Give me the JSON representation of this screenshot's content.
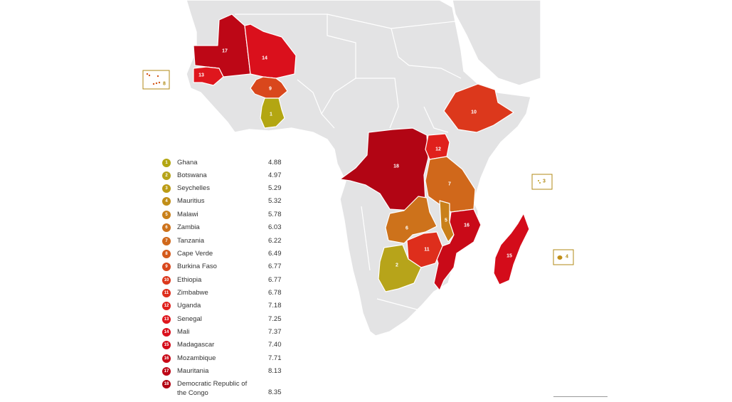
{
  "map": {
    "region": "Africa",
    "inset_labels": [
      "8",
      "3",
      "4"
    ]
  },
  "legend": {
    "items": [
      {
        "rank": "1",
        "country": "Ghana",
        "value": "4.88",
        "color": "#b3a612"
      },
      {
        "rank": "2",
        "country": "Botswana",
        "value": "4.97",
        "color": "#b7a41a"
      },
      {
        "rank": "3",
        "country": "Seychelles",
        "value": "5.29",
        "color": "#bc9c16"
      },
      {
        "rank": "4",
        "country": "Mauritius",
        "value": "5.32",
        "color": "#c18e18"
      },
      {
        "rank": "5",
        "country": "Malawi",
        "value": "5.78",
        "color": "#c9801a"
      },
      {
        "rank": "6",
        "country": "Zambia",
        "value": "6.03",
        "color": "#cd721b"
      },
      {
        "rank": "7",
        "country": "Tanzania",
        "value": "6.22",
        "color": "#d0681b"
      },
      {
        "rank": "8",
        "country": "Cape Verde",
        "value": "6.49",
        "color": "#d45a1b"
      },
      {
        "rank": "9",
        "country": "Burkina Faso",
        "value": "6.77",
        "color": "#d9471c"
      },
      {
        "rank": "10",
        "country": "Ethiopia",
        "value": "6.77",
        "color": "#dc381c"
      },
      {
        "rank": "11",
        "country": "Zimbabwe",
        "value": "6.78",
        "color": "#de2e1c"
      },
      {
        "rank": "12",
        "country": "Uganda",
        "value": "7.18",
        "color": "#e0201c"
      },
      {
        "rank": "13",
        "country": "Senegal",
        "value": "7.25",
        "color": "#df161d"
      },
      {
        "rank": "14",
        "country": "Mali",
        "value": "7.37",
        "color": "#da101c"
      },
      {
        "rank": "15",
        "country": "Madagascar",
        "value": "7.40",
        "color": "#d40c1a"
      },
      {
        "rank": "16",
        "country": "Mozambique",
        "value": "7.71",
        "color": "#c90a18"
      },
      {
        "rank": "17",
        "country": "Mauritania",
        "value": "8.13",
        "color": "#bd0716"
      },
      {
        "rank": "18",
        "country": "Democratic Republic of the Congo",
        "value": "8.35",
        "color": "#b20514"
      }
    ]
  }
}
